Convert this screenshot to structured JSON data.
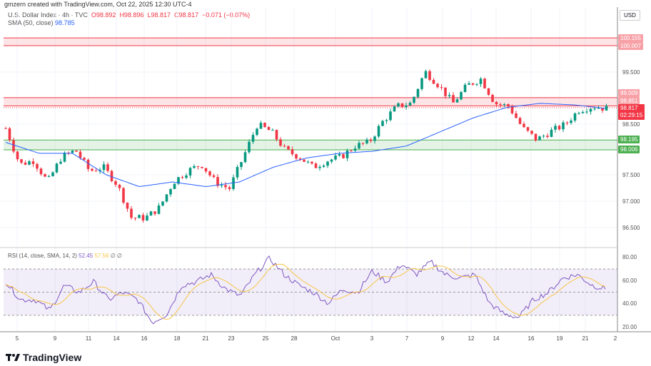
{
  "credit": "gmzern created with TradingView.com, Oct 22, 2025 12:30 UTC-4",
  "symbol": {
    "name": "U.S. Dollar Index · 4h · TVC",
    "open": "O98.892",
    "high": "H98.896",
    "low": "L98.817",
    "close": "C98.817",
    "change": "−0.071 (−0.07%)"
  },
  "sma": {
    "label": "SMA (50, close)",
    "value": "98.785"
  },
  "rsi": {
    "label": "RSI (14, close, SMA, 14, 2)",
    "value": "52.45",
    "sma_value": "57.56",
    "extra": "∅ ∅"
  },
  "currency": "USD",
  "price_axis": [
    "99.500",
    "98.500",
    "98.000",
    "97.500",
    "97.000",
    "96.500"
  ],
  "rsi_axis": [
    "80.00",
    "60.00",
    "40.00",
    "20.00"
  ],
  "price_labels": {
    "r1": "100.155",
    "r2": "100.007",
    "r3": "99.009",
    "r4": "98.851",
    "current": "98.817",
    "countdown": "02:29:15",
    "s1": "98.195",
    "s2": "98.006"
  },
  "dates": [
    "5",
    "9",
    "11",
    "14",
    "16",
    "18",
    "21",
    "23",
    "25",
    "28",
    "Oct",
    "3",
    "7",
    "9",
    "12",
    "14",
    "16",
    "19",
    "21",
    "2"
  ],
  "brand": "TradingView",
  "colors": {
    "up": "#089981",
    "down": "#f23645",
    "sma": "#2962ff",
    "rsi": "#7e57c2",
    "rsi_sma": "#f7c548"
  },
  "chart_data": {
    "type": "candlestick",
    "price_path": [
      98.42,
      97.73,
      97.8,
      97.39,
      97.87,
      98.0,
      97.6,
      97.67,
      97.33,
      96.7,
      96.7,
      96.9,
      97.39,
      97.6,
      97.73,
      97.39,
      97.26,
      97.87,
      98.49,
      98.36,
      98.0,
      97.87,
      97.67,
      97.8,
      97.87,
      98.08,
      98.15,
      98.56,
      98.84,
      98.9,
      99.51,
      99.24,
      98.9,
      99.24,
      99.37,
      98.9,
      98.84,
      98.42,
      98.2,
      98.36,
      98.49,
      98.77,
      98.84,
      98.8
    ],
    "sma_path": [
      98.15,
      97.94,
      97.94,
      97.53,
      97.3,
      97.39,
      97.3,
      97.39,
      97.67,
      97.85,
      97.94,
      97.98,
      98.08,
      98.35,
      98.62,
      98.82,
      98.9,
      98.87,
      98.8
    ],
    "rsi_path": [
      59,
      43.5,
      43.5,
      34.2,
      55.9,
      49.7,
      59,
      43.5,
      49.7,
      43.5,
      23.7,
      31.1,
      55.9,
      59,
      65.2,
      52.8,
      46.6,
      65.2,
      79.4,
      65.2,
      55.9,
      49.7,
      40.4,
      52.8,
      49.7,
      68.2,
      59,
      74.4,
      65.2,
      76.3,
      65.2,
      62.1,
      65.2,
      40.4,
      31.1,
      28,
      43.5,
      49.7,
      62.1,
      65.2,
      56,
      52.45
    ],
    "levels": {
      "resistance_zone": [
        100.007,
        100.155
      ],
      "mid_zone": [
        98.851,
        99.009
      ],
      "support_zone": [
        98.006,
        98.195
      ]
    },
    "rsi_bands": [
      30,
      70
    ]
  }
}
